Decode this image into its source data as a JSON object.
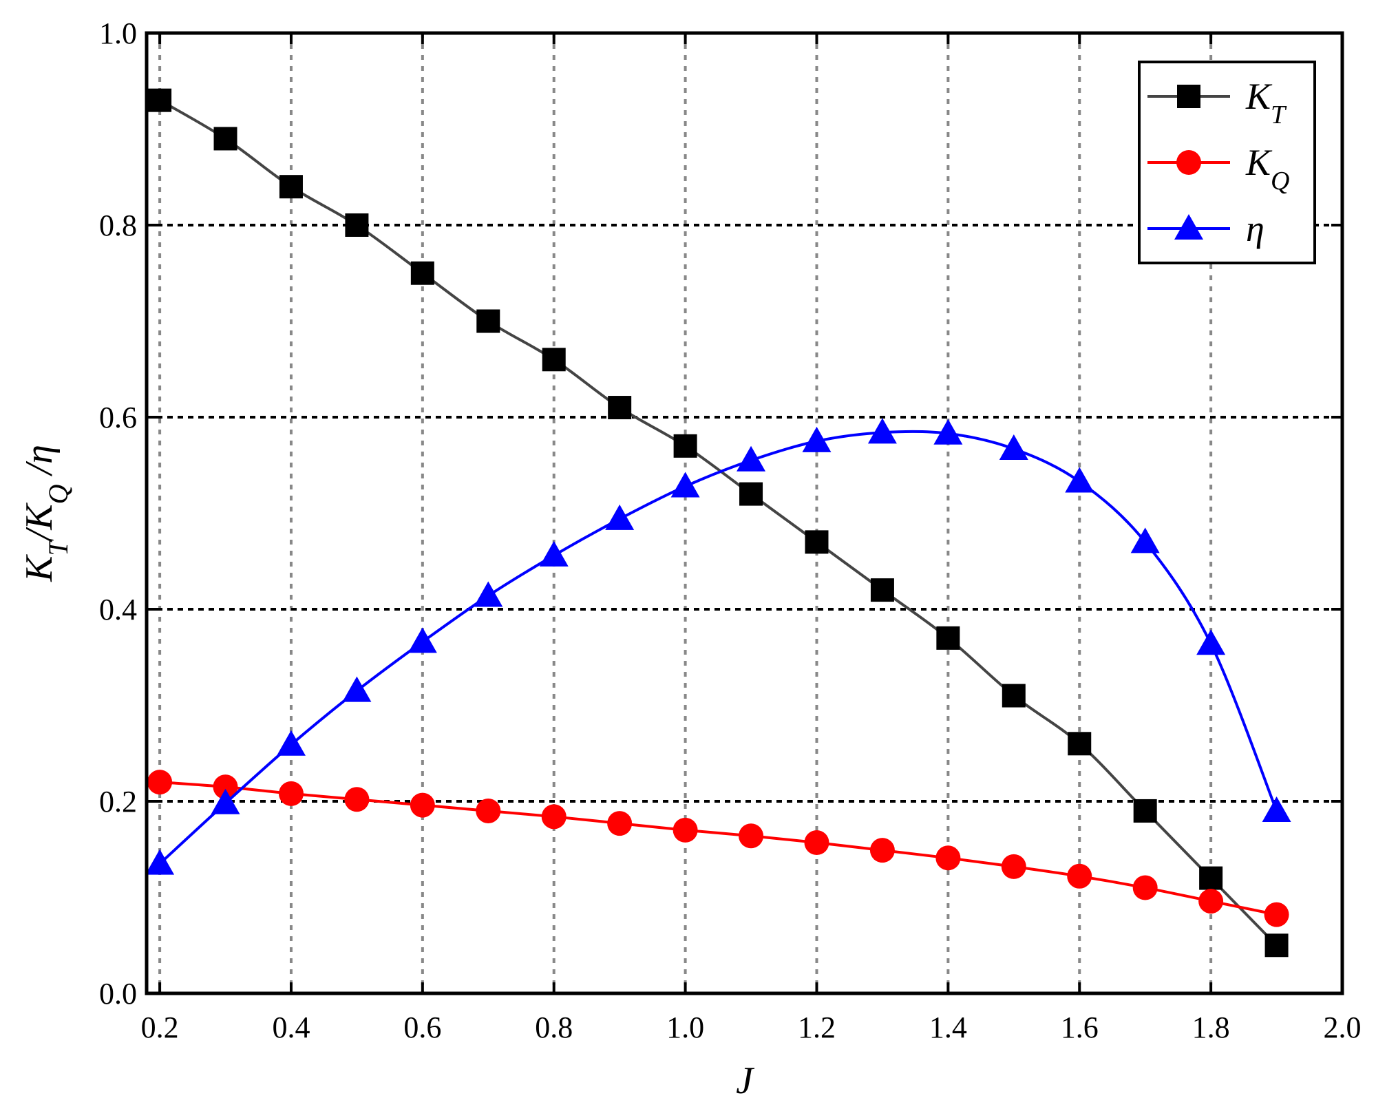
{
  "chart_data": {
    "type": "line",
    "title": "",
    "xlabel": "J",
    "ylabel_parts": [
      "K",
      "T",
      "/K",
      "Q",
      " /η"
    ],
    "xlim": [
      0.18,
      2.0
    ],
    "ylim": [
      0.0,
      1.0
    ],
    "x_ticks": [
      "0.2",
      "0.4",
      "0.6",
      "0.8",
      "1.0",
      "1.2",
      "1.4",
      "1.6",
      "1.8",
      "2.0"
    ],
    "y_ticks": [
      "0.0",
      "0.2",
      "0.4",
      "0.6",
      "0.8",
      "1.0"
    ],
    "grid": true,
    "legend_position": "top-right",
    "x": [
      0.2,
      0.3,
      0.4,
      0.5,
      0.6,
      0.7,
      0.8,
      0.9,
      1.0,
      1.1,
      1.2,
      1.3,
      1.4,
      1.5,
      1.6,
      1.7,
      1.8,
      1.9
    ],
    "series": [
      {
        "name": "K",
        "subscript": "T",
        "color": "#000000",
        "line_color": "#444444",
        "marker": "square",
        "values": [
          0.93,
          0.89,
          0.84,
          0.8,
          0.75,
          0.7,
          0.66,
          0.61,
          0.57,
          0.52,
          0.47,
          0.42,
          0.37,
          0.31,
          0.26,
          0.19,
          0.12,
          0.05
        ]
      },
      {
        "name": "K",
        "subscript": "Q",
        "color": "#ff0000",
        "line_color": "#ff0000",
        "marker": "circle",
        "values": [
          0.22,
          0.215,
          0.208,
          0.202,
          0.196,
          0.19,
          0.184,
          0.177,
          0.17,
          0.164,
          0.157,
          0.149,
          0.141,
          0.132,
          0.122,
          0.11,
          0.096,
          0.082
        ]
      },
      {
        "name": "η",
        "subscript": "",
        "color": "#0000ff",
        "line_color": "#0000ff",
        "marker": "triangle",
        "values": [
          0.135,
          0.198,
          0.259,
          0.315,
          0.366,
          0.414,
          0.456,
          0.494,
          0.528,
          0.555,
          0.575,
          0.584,
          0.583,
          0.567,
          0.533,
          0.47,
          0.364,
          0.19
        ]
      }
    ]
  }
}
